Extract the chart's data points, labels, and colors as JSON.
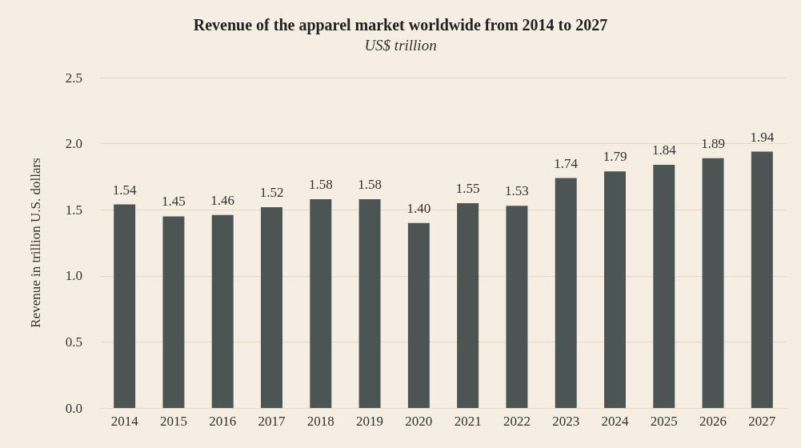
{
  "chart_data": {
    "type": "bar",
    "title": "Revenue of the apparel market worldwide from 2014 to 2027",
    "subtitle": "US$ trillion",
    "ylabel": "Revenue in trillion U.S. dollars",
    "categories": [
      "2014",
      "2015",
      "2016",
      "2017",
      "2018",
      "2019",
      "2020",
      "2021",
      "2022",
      "2023",
      "2024",
      "2025",
      "2026",
      "2027"
    ],
    "values": [
      1.54,
      1.45,
      1.46,
      1.52,
      1.58,
      1.58,
      1.4,
      1.55,
      1.53,
      1.74,
      1.79,
      1.84,
      1.89,
      1.94
    ],
    "value_labels": [
      "1.54",
      "1.45",
      "1.46",
      "1.52",
      "1.58",
      "1.58",
      "1.40",
      "1.55",
      "1.53",
      "1.74",
      "1.79",
      "1.84",
      "1.89",
      "1.94"
    ],
    "color": "#4b5654",
    "ylim": [
      0,
      2.5
    ],
    "yticks": [
      {
        "value": 0,
        "label": "0.0"
      },
      0.5,
      {
        "value": 1,
        "label": "1.0"
      },
      1.5,
      {
        "value": 2,
        "label": "2.0"
      },
      2.5
    ],
    "grid": "y"
  }
}
